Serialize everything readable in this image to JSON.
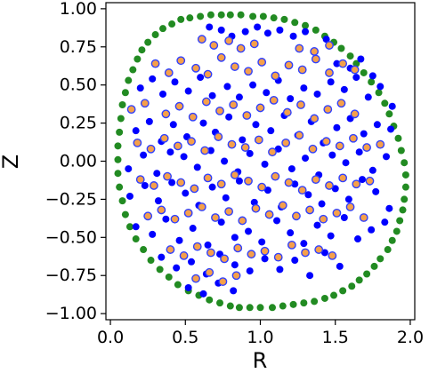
{
  "chart_data": {
    "type": "scatter",
    "title": "",
    "xlabel": "R",
    "ylabel": "Z",
    "xlim": [
      -0.03,
      2.03
    ],
    "ylim": [
      -1.04,
      1.04
    ],
    "x_ticks": [
      0.0,
      0.5,
      1.0,
      1.5,
      2.0
    ],
    "x_tick_labels": [
      "0.0",
      "0.5",
      "1.0",
      "1.5",
      "2.0"
    ],
    "y_ticks": [
      -1.0,
      -0.75,
      -0.5,
      -0.25,
      0.0,
      0.25,
      0.5,
      0.75,
      1.0
    ],
    "y_tick_labels": [
      "−1.00",
      "−0.75",
      "−0.50",
      "−0.25",
      "0.00",
      "0.25",
      "0.50",
      "0.75",
      "1.00"
    ],
    "grid": false,
    "legend": "none",
    "colors": {
      "boundary": "#228b22",
      "interior_blue": "#0000ff",
      "interior_orange": "#f5a04a",
      "orange_edge": "#3040ff"
    },
    "series": [
      {
        "marker": "circle",
        "color": "#228b22",
        "x": [
          0.8,
          0.87,
          0.95,
          1.02,
          1.09,
          1.16,
          1.23,
          1.3,
          1.37,
          1.43,
          1.49,
          1.54,
          1.6,
          1.64,
          1.69,
          1.74,
          1.79,
          1.83,
          1.86,
          1.89,
          1.92,
          1.94,
          1.96,
          1.97,
          1.97,
          1.96,
          1.95,
          1.93,
          1.91,
          1.88,
          1.85,
          1.8,
          1.76,
          1.71,
          1.66,
          1.61,
          1.55,
          1.49,
          1.43,
          1.36,
          1.29,
          1.22,
          1.15,
          1.08,
          1.0,
          0.93,
          0.86,
          0.8,
          0.73,
          0.66,
          0.59,
          0.52,
          0.45,
          0.39,
          0.33,
          0.27,
          0.22,
          0.17,
          0.13,
          0.1,
          0.08,
          0.06,
          0.05,
          0.05,
          0.05,
          0.06,
          0.07,
          0.08,
          0.1,
          0.12,
          0.15,
          0.18,
          0.21,
          0.25,
          0.3,
          0.35,
          0.41,
          0.47,
          0.53,
          0.6,
          0.67,
          0.74
        ],
        "y": [
          0.96,
          0.96,
          0.95,
          0.95,
          0.94,
          0.93,
          0.91,
          0.89,
          0.86,
          0.82,
          0.78,
          0.74,
          0.69,
          0.64,
          0.58,
          0.52,
          0.45,
          0.38,
          0.31,
          0.23,
          0.15,
          0.07,
          -0.01,
          -0.09,
          -0.17,
          -0.25,
          -0.32,
          -0.39,
          -0.46,
          -0.52,
          -0.58,
          -0.64,
          -0.69,
          -0.74,
          -0.78,
          -0.82,
          -0.85,
          -0.88,
          -0.9,
          -0.92,
          -0.93,
          -0.94,
          -0.95,
          -0.96,
          -0.96,
          -0.96,
          -0.96,
          -0.95,
          -0.93,
          -0.91,
          -0.88,
          -0.85,
          -0.81,
          -0.76,
          -0.71,
          -0.65,
          -0.58,
          -0.51,
          -0.43,
          -0.35,
          -0.26,
          -0.17,
          -0.08,
          0.01,
          0.1,
          0.19,
          0.28,
          0.37,
          0.45,
          0.53,
          0.6,
          0.67,
          0.73,
          0.78,
          0.83,
          0.87,
          0.9,
          0.93,
          0.94,
          0.95,
          0.96,
          0.96
        ]
      },
      {
        "marker": "circle",
        "color": "#0000ff",
        "x": [
          0.66,
          0.74,
          0.81,
          0.9,
          0.98,
          1.05,
          1.13,
          1.22,
          1.3,
          1.44,
          1.51,
          1.6,
          1.67,
          1.75,
          0.2,
          0.28,
          0.35,
          0.43,
          0.52,
          0.6,
          0.68,
          0.78,
          0.86,
          0.95,
          1.04,
          1.12,
          1.2,
          1.29,
          1.38,
          1.47,
          1.56,
          1.64,
          1.72,
          1.8,
          1.88,
          0.17,
          0.26,
          0.34,
          0.42,
          0.51,
          0.62,
          0.7,
          0.79,
          0.88,
          0.97,
          1.07,
          1.16,
          1.25,
          1.34,
          1.42,
          1.51,
          1.6,
          1.69,
          1.78,
          1.87,
          0.12,
          0.22,
          0.31,
          0.4,
          0.49,
          0.58,
          0.67,
          0.76,
          0.85,
          0.93,
          1.03,
          1.12,
          1.21,
          1.3,
          1.39,
          1.48,
          1.57,
          1.66,
          1.75,
          1.84,
          0.13,
          0.23,
          0.32,
          0.41,
          0.5,
          0.59,
          0.68,
          0.77,
          0.86,
          0.96,
          1.05,
          1.14,
          1.23,
          1.32,
          1.41,
          1.5,
          1.59,
          1.68,
          1.77,
          1.86,
          0.17,
          0.28,
          0.37,
          0.46,
          0.55,
          0.65,
          0.74,
          0.83,
          0.92,
          1.01,
          1.11,
          1.2,
          1.29,
          1.38,
          1.47,
          1.56,
          1.65,
          1.74,
          1.83,
          0.34,
          0.44,
          0.54,
          0.64,
          0.73,
          0.83,
          0.93,
          1.03,
          1.13,
          1.23,
          1.33,
          1.43,
          1.53,
          0.52,
          0.62,
          0.72,
          0.82
        ],
        "y": [
          0.88,
          0.86,
          0.82,
          0.85,
          0.88,
          0.84,
          0.86,
          0.82,
          0.85,
          0.8,
          0.64,
          0.61,
          0.67,
          0.56,
          0.48,
          0.54,
          0.44,
          0.52,
          0.46,
          0.55,
          0.43,
          0.49,
          0.42,
          0.5,
          0.45,
          0.53,
          0.41,
          0.48,
          0.44,
          0.52,
          0.47,
          0.55,
          0.42,
          0.49,
          0.36,
          0.2,
          0.26,
          0.13,
          0.24,
          0.16,
          0.25,
          0.19,
          0.29,
          0.14,
          0.24,
          0.2,
          0.3,
          0.17,
          0.26,
          0.12,
          0.22,
          0.28,
          0.18,
          0.24,
          0.21,
          -0.05,
          0.04,
          -0.08,
          0.06,
          0.03,
          -0.04,
          0.07,
          0.0,
          -0.07,
          0.05,
          -0.02,
          0.08,
          -0.05,
          0.02,
          -0.09,
          0.04,
          -0.01,
          0.06,
          -0.06,
          0.03,
          -0.23,
          -0.16,
          -0.26,
          -0.14,
          -0.21,
          -0.29,
          -0.17,
          -0.24,
          -0.13,
          -0.27,
          -0.19,
          -0.3,
          -0.15,
          -0.22,
          -0.28,
          -0.18,
          -0.25,
          -0.12,
          -0.2,
          -0.31,
          -0.43,
          -0.48,
          -0.38,
          -0.52,
          -0.44,
          -0.55,
          -0.4,
          -0.5,
          -0.46,
          -0.53,
          -0.39,
          -0.47,
          -0.54,
          -0.42,
          -0.49,
          -0.37,
          -0.51,
          -0.45,
          -0.4,
          -0.63,
          -0.7,
          -0.66,
          -0.74,
          -0.61,
          -0.68,
          -0.72,
          -0.64,
          -0.71,
          -0.65,
          -0.75,
          -0.6,
          -0.69,
          -0.83,
          -0.87,
          -0.8,
          -0.85
        ]
      },
      {
        "marker": "circle",
        "color": "#f5a04a",
        "edgecolor": "#3040ff",
        "x": [
          0.61,
          0.69,
          0.79,
          0.87,
          0.96,
          1.26,
          1.36,
          1.46,
          0.3,
          0.39,
          0.47,
          0.57,
          0.65,
          0.74,
          0.83,
          0.92,
          1.01,
          1.1,
          1.19,
          1.28,
          1.37,
          1.46,
          1.55,
          1.63,
          0.14,
          0.23,
          0.37,
          0.46,
          0.55,
          0.64,
          0.73,
          0.82,
          0.91,
          1.0,
          1.09,
          1.18,
          1.27,
          1.36,
          1.45,
          1.54,
          1.63,
          0.18,
          0.27,
          0.36,
          0.45,
          0.54,
          0.63,
          0.72,
          0.81,
          0.9,
          0.99,
          1.08,
          1.17,
          1.26,
          1.35,
          1.44,
          1.53,
          1.62,
          1.71,
          1.8,
          0.2,
          0.29,
          0.38,
          0.47,
          0.56,
          0.65,
          0.74,
          0.83,
          0.92,
          1.01,
          1.1,
          1.19,
          1.28,
          1.37,
          1.46,
          1.55,
          1.64,
          1.73,
          0.25,
          0.34,
          0.43,
          0.52,
          0.61,
          0.7,
          0.79,
          0.88,
          0.97,
          1.06,
          1.15,
          1.24,
          1.33,
          1.42,
          1.51,
          1.6,
          1.69,
          0.4,
          0.49,
          0.58,
          0.67,
          0.76,
          0.85,
          0.94,
          1.03,
          1.12,
          1.21,
          1.3,
          1.39,
          1.48,
          0.57,
          0.66,
          0.75,
          0.84
        ],
        "y": [
          0.8,
          0.76,
          0.79,
          0.74,
          0.77,
          0.74,
          0.72,
          0.76,
          0.64,
          0.58,
          0.66,
          0.61,
          0.57,
          0.68,
          0.62,
          0.59,
          0.65,
          0.56,
          0.63,
          0.6,
          0.67,
          0.58,
          0.64,
          0.6,
          0.34,
          0.38,
          0.31,
          0.36,
          0.29,
          0.39,
          0.33,
          0.37,
          0.3,
          0.35,
          0.4,
          0.32,
          0.37,
          0.28,
          0.34,
          0.38,
          0.31,
          0.12,
          0.08,
          0.15,
          0.1,
          0.13,
          0.07,
          0.16,
          0.11,
          0.09,
          0.14,
          0.06,
          0.12,
          0.17,
          0.08,
          0.13,
          0.1,
          0.15,
          0.09,
          0.11,
          -0.12,
          -0.16,
          -0.1,
          -0.14,
          -0.18,
          -0.11,
          -0.15,
          -0.09,
          -0.13,
          -0.17,
          -0.1,
          -0.14,
          -0.19,
          -0.12,
          -0.16,
          -0.11,
          -0.15,
          -0.13,
          -0.36,
          -0.32,
          -0.38,
          -0.34,
          -0.3,
          -0.37,
          -0.33,
          -0.39,
          -0.31,
          -0.35,
          -0.29,
          -0.36,
          -0.32,
          -0.38,
          -0.34,
          -0.3,
          -0.37,
          -0.58,
          -0.62,
          -0.56,
          -0.6,
          -0.64,
          -0.57,
          -0.61,
          -0.59,
          -0.63,
          -0.55,
          -0.6,
          -0.58,
          -0.62,
          -0.77,
          -0.73,
          -0.79,
          -0.75
        ]
      }
    ]
  }
}
